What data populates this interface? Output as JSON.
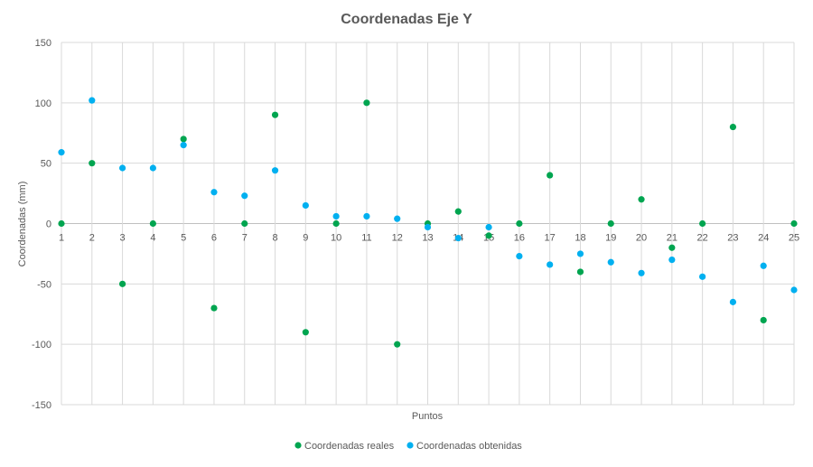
{
  "chart_data": {
    "type": "scatter",
    "title": "Coordenadas Eje Y",
    "xlabel": "Puntos",
    "ylabel": "Coordenadas (mm)",
    "x": [
      1,
      2,
      3,
      4,
      5,
      6,
      7,
      8,
      9,
      10,
      11,
      12,
      13,
      14,
      15,
      16,
      17,
      18,
      19,
      20,
      21,
      22,
      23,
      24,
      25
    ],
    "xlim": [
      1,
      25
    ],
    "ylim": [
      -150,
      150
    ],
    "yticks": [
      150,
      100,
      50,
      0,
      -50,
      -100,
      -150
    ],
    "xticks": [
      "1",
      "2",
      "3",
      "4",
      "5",
      "6",
      "7",
      "8",
      "9",
      "10",
      "11",
      "12",
      "13",
      "14",
      "15",
      "16",
      "17",
      "18",
      "19",
      "20",
      "21",
      "22",
      "23",
      "24",
      "25"
    ],
    "grid": true,
    "legend_position": "bottom",
    "series": [
      {
        "name": "Coordenadas reales",
        "color": "#00A550",
        "values": [
          0,
          50,
          -50,
          0,
          70,
          -70,
          0,
          90,
          -90,
          0,
          100,
          -100,
          0,
          10,
          -10,
          0,
          40,
          -40,
          0,
          20,
          -20,
          0,
          80,
          -80,
          0
        ]
      },
      {
        "name": "Coordenadas obtenidas",
        "color": "#00B0F0",
        "values": [
          59,
          102,
          46,
          46,
          65,
          26,
          23,
          44,
          15,
          6,
          6,
          4,
          -3,
          -12,
          -3,
          -27,
          -34,
          -25,
          -32,
          -41,
          -30,
          -44,
          -65,
          -35,
          -55
        ]
      }
    ]
  }
}
